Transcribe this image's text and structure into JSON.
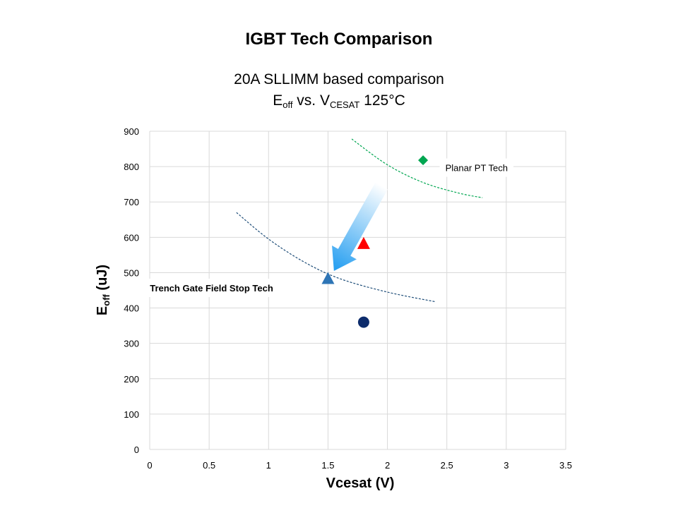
{
  "page": {
    "title": "IGBT Tech Comparison",
    "subtitle_line1": "20A SLLIMM  based comparison",
    "subtitle_line2": {
      "e_main": "E",
      "e_sub": "off",
      "mid": " vs. V",
      "v_sub": "CESAT",
      "tail": " 125°C"
    }
  },
  "chart_data": {
    "type": "scatter",
    "title": "",
    "xlabel": "Vcesat (V)",
    "ylabel": {
      "main": "E",
      "sub": "off",
      "tail": " (uJ)"
    },
    "xlim": [
      0,
      3.5
    ],
    "ylim": [
      0,
      900
    ],
    "x_ticks": [
      0,
      0.5,
      1,
      1.5,
      2,
      2.5,
      3,
      3.5
    ],
    "x_tick_labels": [
      "0",
      "0.5",
      "1",
      "1.5",
      "2",
      "2.5",
      "3",
      "3.5"
    ],
    "y_ticks": [
      0,
      100,
      200,
      300,
      400,
      500,
      600,
      700,
      800,
      900
    ],
    "y_tick_labels": [
      "0",
      "100",
      "200",
      "300",
      "400",
      "500",
      "600",
      "700",
      "800",
      "900"
    ],
    "grid": true,
    "series": [
      {
        "marker": "diamond",
        "color": "#00a651",
        "points": [
          {
            "x": 2.3,
            "y": 818
          }
        ]
      },
      {
        "marker": "triangle",
        "color": "#ff0000",
        "points": [
          {
            "x": 1.8,
            "y": 583
          }
        ]
      },
      {
        "marker": "triangle",
        "color": "#2e75b6",
        "points": [
          {
            "x": 1.5,
            "y": 484
          }
        ]
      },
      {
        "marker": "circle",
        "color": "#0d2c6c",
        "points": [
          {
            "x": 1.8,
            "y": 360
          }
        ]
      }
    ],
    "trend_curves": [
      {
        "color": "#00a651",
        "style": "dashed",
        "points": [
          [
            1.7,
            878
          ],
          [
            2.0,
            805
          ],
          [
            2.3,
            755
          ],
          [
            2.6,
            725
          ],
          [
            2.8,
            712
          ]
        ]
      },
      {
        "color": "#1f4e79",
        "style": "dashed",
        "points": [
          [
            0.73,
            670
          ],
          [
            1.0,
            595
          ],
          [
            1.3,
            530
          ],
          [
            1.6,
            483
          ],
          [
            2.0,
            445
          ],
          [
            2.4,
            418
          ]
        ]
      }
    ],
    "arrow": {
      "from": {
        "x": 1.95,
        "y": 745
      },
      "to": {
        "x": 1.55,
        "y": 505
      },
      "color_start": "#ffffff",
      "color_end": "#1e9bf0"
    },
    "annotations": [
      {
        "text": "Planar PT Tech",
        "bold": false,
        "x": 2.75,
        "y": 797
      },
      {
        "text": "Trench Gate Field Stop Tech",
        "bold": true,
        "x": 0.52,
        "y": 457
      }
    ]
  }
}
